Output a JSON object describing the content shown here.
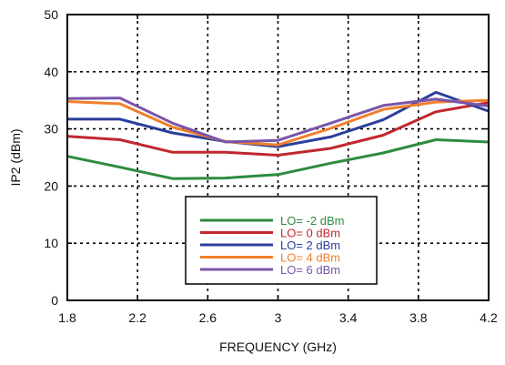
{
  "chart_data": {
    "type": "line",
    "xlabel": "FREQUENCY (GHz)",
    "ylabel": "IP2 (dBm)",
    "xlim": [
      1.8,
      4.2
    ],
    "ylim": [
      0,
      50
    ],
    "x_ticks": [
      "1.8",
      "2.2",
      "2.6",
      "3",
      "3.4",
      "3.8",
      "4.2"
    ],
    "y_ticks": [
      "0",
      "10",
      "20",
      "30",
      "40",
      "50"
    ],
    "grid": true,
    "legend_position": "center-bottom",
    "x": [
      1.8,
      2.1,
      2.4,
      2.7,
      3.0,
      3.3,
      3.6,
      3.9,
      4.2
    ],
    "series": [
      {
        "name": "LO= -2 dBm",
        "color": "#2e8b3e",
        "values": [
          25.2,
          23.3,
          21.3,
          21.4,
          22.0,
          24.0,
          25.8,
          28.1,
          27.7
        ]
      },
      {
        "name": "LO= 0 dBm",
        "color": "#c0282d",
        "values": [
          28.7,
          28.1,
          25.9,
          25.9,
          25.4,
          26.6,
          28.9,
          33.0,
          34.6
        ]
      },
      {
        "name": "LO= 2 dBm",
        "color": "#2c3f9c",
        "values": [
          31.7,
          31.7,
          29.3,
          27.8,
          26.9,
          28.6,
          31.6,
          36.4,
          33.1
        ]
      },
      {
        "name": "LO= 4 dBm",
        "color": "#f07f2a",
        "values": [
          34.8,
          34.4,
          30.3,
          27.8,
          27.2,
          30.1,
          33.4,
          34.7,
          35.0
        ]
      },
      {
        "name": "LO= 6 dBm",
        "color": "#7b55a8",
        "values": [
          35.3,
          35.4,
          31.0,
          27.7,
          28.0,
          31.0,
          34.1,
          35.2,
          34.0
        ]
      }
    ]
  }
}
